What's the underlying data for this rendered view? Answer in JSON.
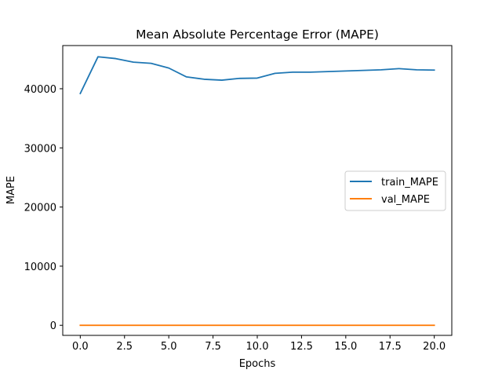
{
  "chart_data": {
    "type": "line",
    "title": "Mean Absolute Percentage Error (MAPE)",
    "xlabel": "Epochs",
    "ylabel": "MAPE",
    "xlim": [
      -0.99,
      20.99
    ],
    "ylim": [
      -1700,
      47300
    ],
    "xticks": [
      0.0,
      2.5,
      5.0,
      7.5,
      10.0,
      12.5,
      15.0,
      17.5,
      20.0
    ],
    "xtick_labels": [
      "0.0",
      "2.5",
      "5.0",
      "7.5",
      "10.0",
      "12.5",
      "15.0",
      "17.5",
      "20.0"
    ],
    "yticks": [
      0,
      10000,
      20000,
      30000,
      40000
    ],
    "ytick_labels": [
      "0",
      "10000",
      "20000",
      "30000",
      "40000"
    ],
    "grid": false,
    "legend_position": "center-right",
    "x": [
      0,
      1,
      2,
      3,
      4,
      5,
      6,
      7,
      8,
      9,
      10,
      11,
      12,
      13,
      14,
      15,
      16,
      17,
      18,
      19,
      20
    ],
    "series": [
      {
        "name": "train_MAPE",
        "color": "#1f77b4",
        "values": [
          39200,
          45400,
          45100,
          44500,
          44300,
          43500,
          42000,
          41600,
          41450,
          41750,
          41800,
          42600,
          42800,
          42800,
          42900,
          43000,
          43100,
          43200,
          43400,
          43200,
          43150
        ]
      },
      {
        "name": "val_MAPE",
        "color": "#ff7f0e",
        "values": [
          0,
          0,
          0,
          0,
          0,
          0,
          0,
          0,
          0,
          0,
          0,
          0,
          0,
          0,
          0,
          0,
          0,
          0,
          0,
          0,
          0
        ]
      }
    ]
  }
}
